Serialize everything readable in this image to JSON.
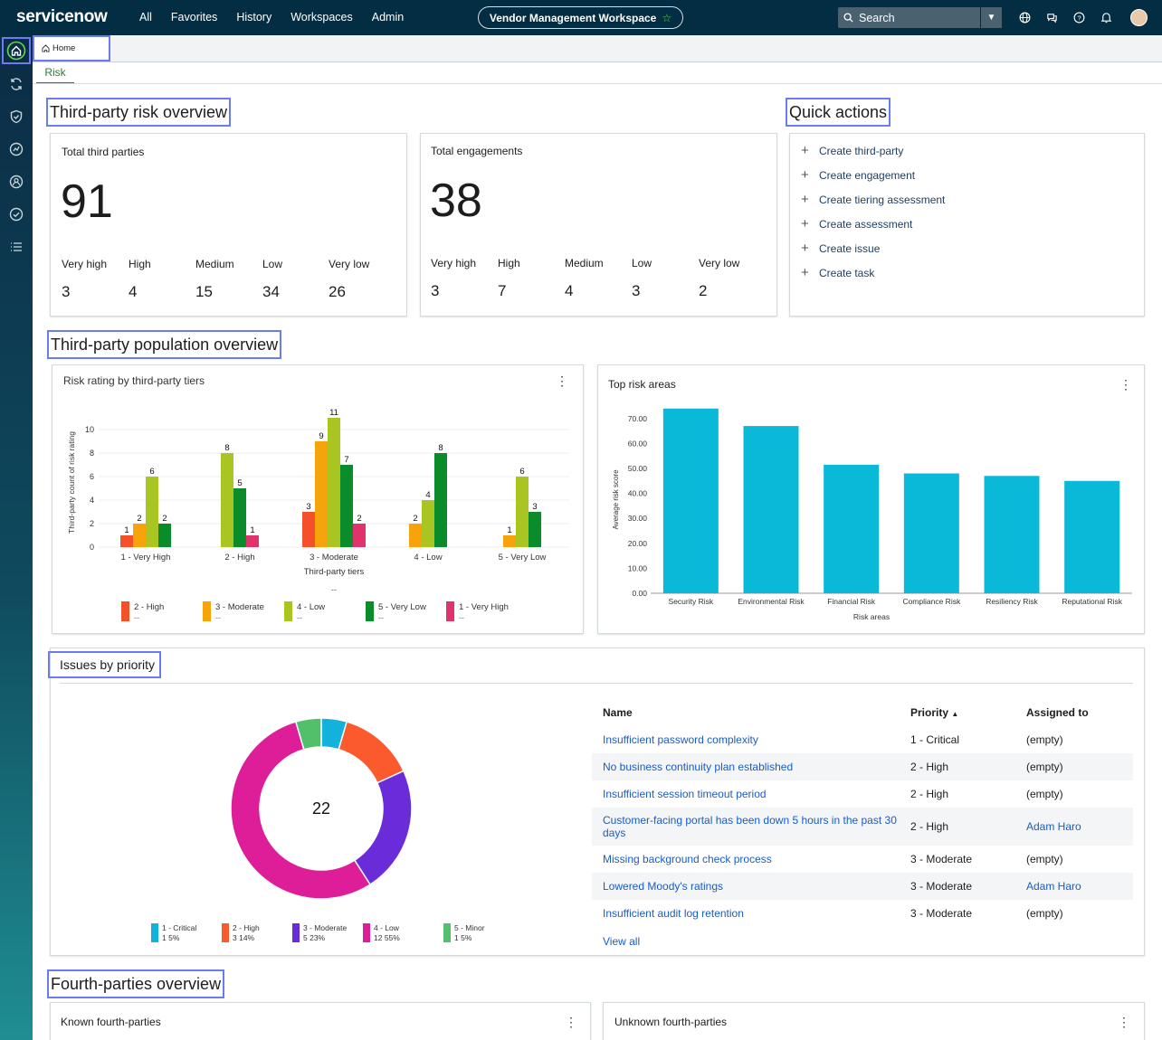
{
  "topbar": {
    "logo_text": "servicenow",
    "nav": [
      "All",
      "Favorites",
      "History",
      "Workspaces",
      "Admin"
    ],
    "workspace_title": "Vendor Management Workspace",
    "search_placeholder": "Search"
  },
  "tabs": {
    "home_label": "Home",
    "subtab_label": "Risk"
  },
  "sections": {
    "risk_overview": "Third-party risk overview",
    "quick_actions": "Quick actions",
    "population_overview": "Third-party population overview",
    "issues_priority": "Issues by priority",
    "fourth_parties": "Fourth-parties overview"
  },
  "kpis": [
    {
      "title": "Total third parties",
      "total": "91",
      "breakdown": [
        {
          "label": "Very high",
          "value": "3"
        },
        {
          "label": "High",
          "value": "4"
        },
        {
          "label": "Medium",
          "value": "15"
        },
        {
          "label": "Low",
          "value": "34"
        },
        {
          "label": "Very low",
          "value": "26"
        }
      ]
    },
    {
      "title": "Total engagements",
      "total": "38",
      "breakdown": [
        {
          "label": "Very high",
          "value": "3"
        },
        {
          "label": "High",
          "value": "7"
        },
        {
          "label": "Medium",
          "value": "4"
        },
        {
          "label": "Low",
          "value": "3"
        },
        {
          "label": "Very low",
          "value": "2"
        }
      ]
    }
  ],
  "quick_actions": [
    "Create third-party",
    "Create engagement",
    "Create tiering assessment",
    "Create assessment",
    "Create issue",
    "Create task"
  ],
  "chart_data": [
    {
      "type": "bar",
      "title": "Risk rating by third-party tiers",
      "xlabel": "Third-party tiers",
      "ylabel": "Third-party count of risk rating",
      "categories": [
        "1 - Very High",
        "2 - High",
        "3 - Moderate",
        "4 - Low",
        "5 - Very Low"
      ],
      "ylim": [
        0,
        11
      ],
      "yticks": [
        0,
        2,
        4,
        6,
        8,
        10
      ],
      "series": [
        {
          "name": "1 - Very High",
          "color": "#e0336e",
          "values": [
            null,
            1,
            2,
            null,
            null
          ]
        },
        {
          "name": "2 - High",
          "color": "#f4502a",
          "values": [
            1,
            null,
            3,
            null,
            null
          ]
        },
        {
          "name": "3 - Moderate",
          "color": "#f7a30c",
          "values": [
            2,
            null,
            9,
            2,
            1
          ]
        },
        {
          "name": "4 - Low",
          "color": "#a8c521",
          "values": [
            6,
            8,
            11,
            4,
            6
          ]
        },
        {
          "name": "5 - Very Low",
          "color": "#0b8c2a",
          "values": [
            2,
            5,
            7,
            8,
            3
          ]
        }
      ],
      "legend": [
        {
          "name": "2 - High",
          "color": "#f4502a",
          "sub": "--"
        },
        {
          "name": "3 - Moderate",
          "color": "#f7a30c",
          "sub": "--"
        },
        {
          "name": "4 - Low",
          "color": "#a8c521",
          "sub": "--"
        },
        {
          "name": "5 - Very Low",
          "color": "#0b8c2a",
          "sub": "--"
        },
        {
          "name": "1 - Very High",
          "color": "#e0336e",
          "sub": "--"
        }
      ],
      "legend_placeholder": "--",
      "legend_position": "bottom"
    },
    {
      "type": "bar",
      "title": "Top risk areas",
      "xlabel": "Risk areas",
      "ylabel": "Average risk score",
      "categories": [
        "Security Risk",
        "Environmental Risk",
        "Financial Risk",
        "Compliance Risk",
        "Resiliency Risk",
        "Reputational Risk"
      ],
      "values": [
        74,
        67,
        51.5,
        48,
        47,
        45
      ],
      "ylim": [
        0,
        75
      ],
      "yticks": [
        "0.00",
        "10.00",
        "20.00",
        "30.00",
        "40.00",
        "50.00",
        "60.00",
        "70.00"
      ],
      "color": "#0ab8d8"
    },
    {
      "type": "pie",
      "title": "Issues by priority",
      "center_label": "22",
      "slices": [
        {
          "name": "1 - Critical",
          "count": 1,
          "percent": 5,
          "color": "#13b2dd"
        },
        {
          "name": "2 - High",
          "count": 3,
          "percent": 14,
          "color": "#fa5a2c"
        },
        {
          "name": "3 - Moderate",
          "count": 5,
          "percent": 23,
          "color": "#6a2bd8"
        },
        {
          "name": "4 - Low",
          "count": 12,
          "percent": 55,
          "color": "#dd1e98"
        },
        {
          "name": "5 - Minor",
          "count": 1,
          "percent": 5,
          "color": "#52c06a"
        }
      ],
      "legend": [
        {
          "name": "1 - Critical",
          "sub": "1  5%"
        },
        {
          "name": "2 - High",
          "sub": "3  14%"
        },
        {
          "name": "3 - Moderate",
          "sub": "5  23%"
        },
        {
          "name": "4 - Low",
          "sub": "12  55%"
        },
        {
          "name": "5 - Minor",
          "sub": "1  5%"
        }
      ]
    }
  ],
  "issues_table": {
    "headers": {
      "name": "Name",
      "priority": "Priority",
      "assigned": "Assigned to"
    },
    "rows": [
      {
        "name": "Insufficient password complexity",
        "priority": "1 - Critical",
        "assigned": "(empty)"
      },
      {
        "name": "No business continuity plan established",
        "priority": "2 - High",
        "assigned": "(empty)"
      },
      {
        "name": "Insufficient session timeout period",
        "priority": "2 - High",
        "assigned": "(empty)"
      },
      {
        "name": "Customer-facing portal has been down 5 hours in the past 30 days",
        "priority": "2 - High",
        "assigned": "Adam Haro"
      },
      {
        "name": "Missing background check process",
        "priority": "3 - Moderate",
        "assigned": "(empty)"
      },
      {
        "name": "Lowered Moody's ratings",
        "priority": "3 - Moderate",
        "assigned": "Adam Haro"
      },
      {
        "name": "Insufficient audit log retention",
        "priority": "3 - Moderate",
        "assigned": "(empty)"
      }
    ],
    "view_all": "View all"
  },
  "fourth_parties": {
    "known": "Known fourth-parties",
    "unknown": "Unknown fourth-parties"
  }
}
